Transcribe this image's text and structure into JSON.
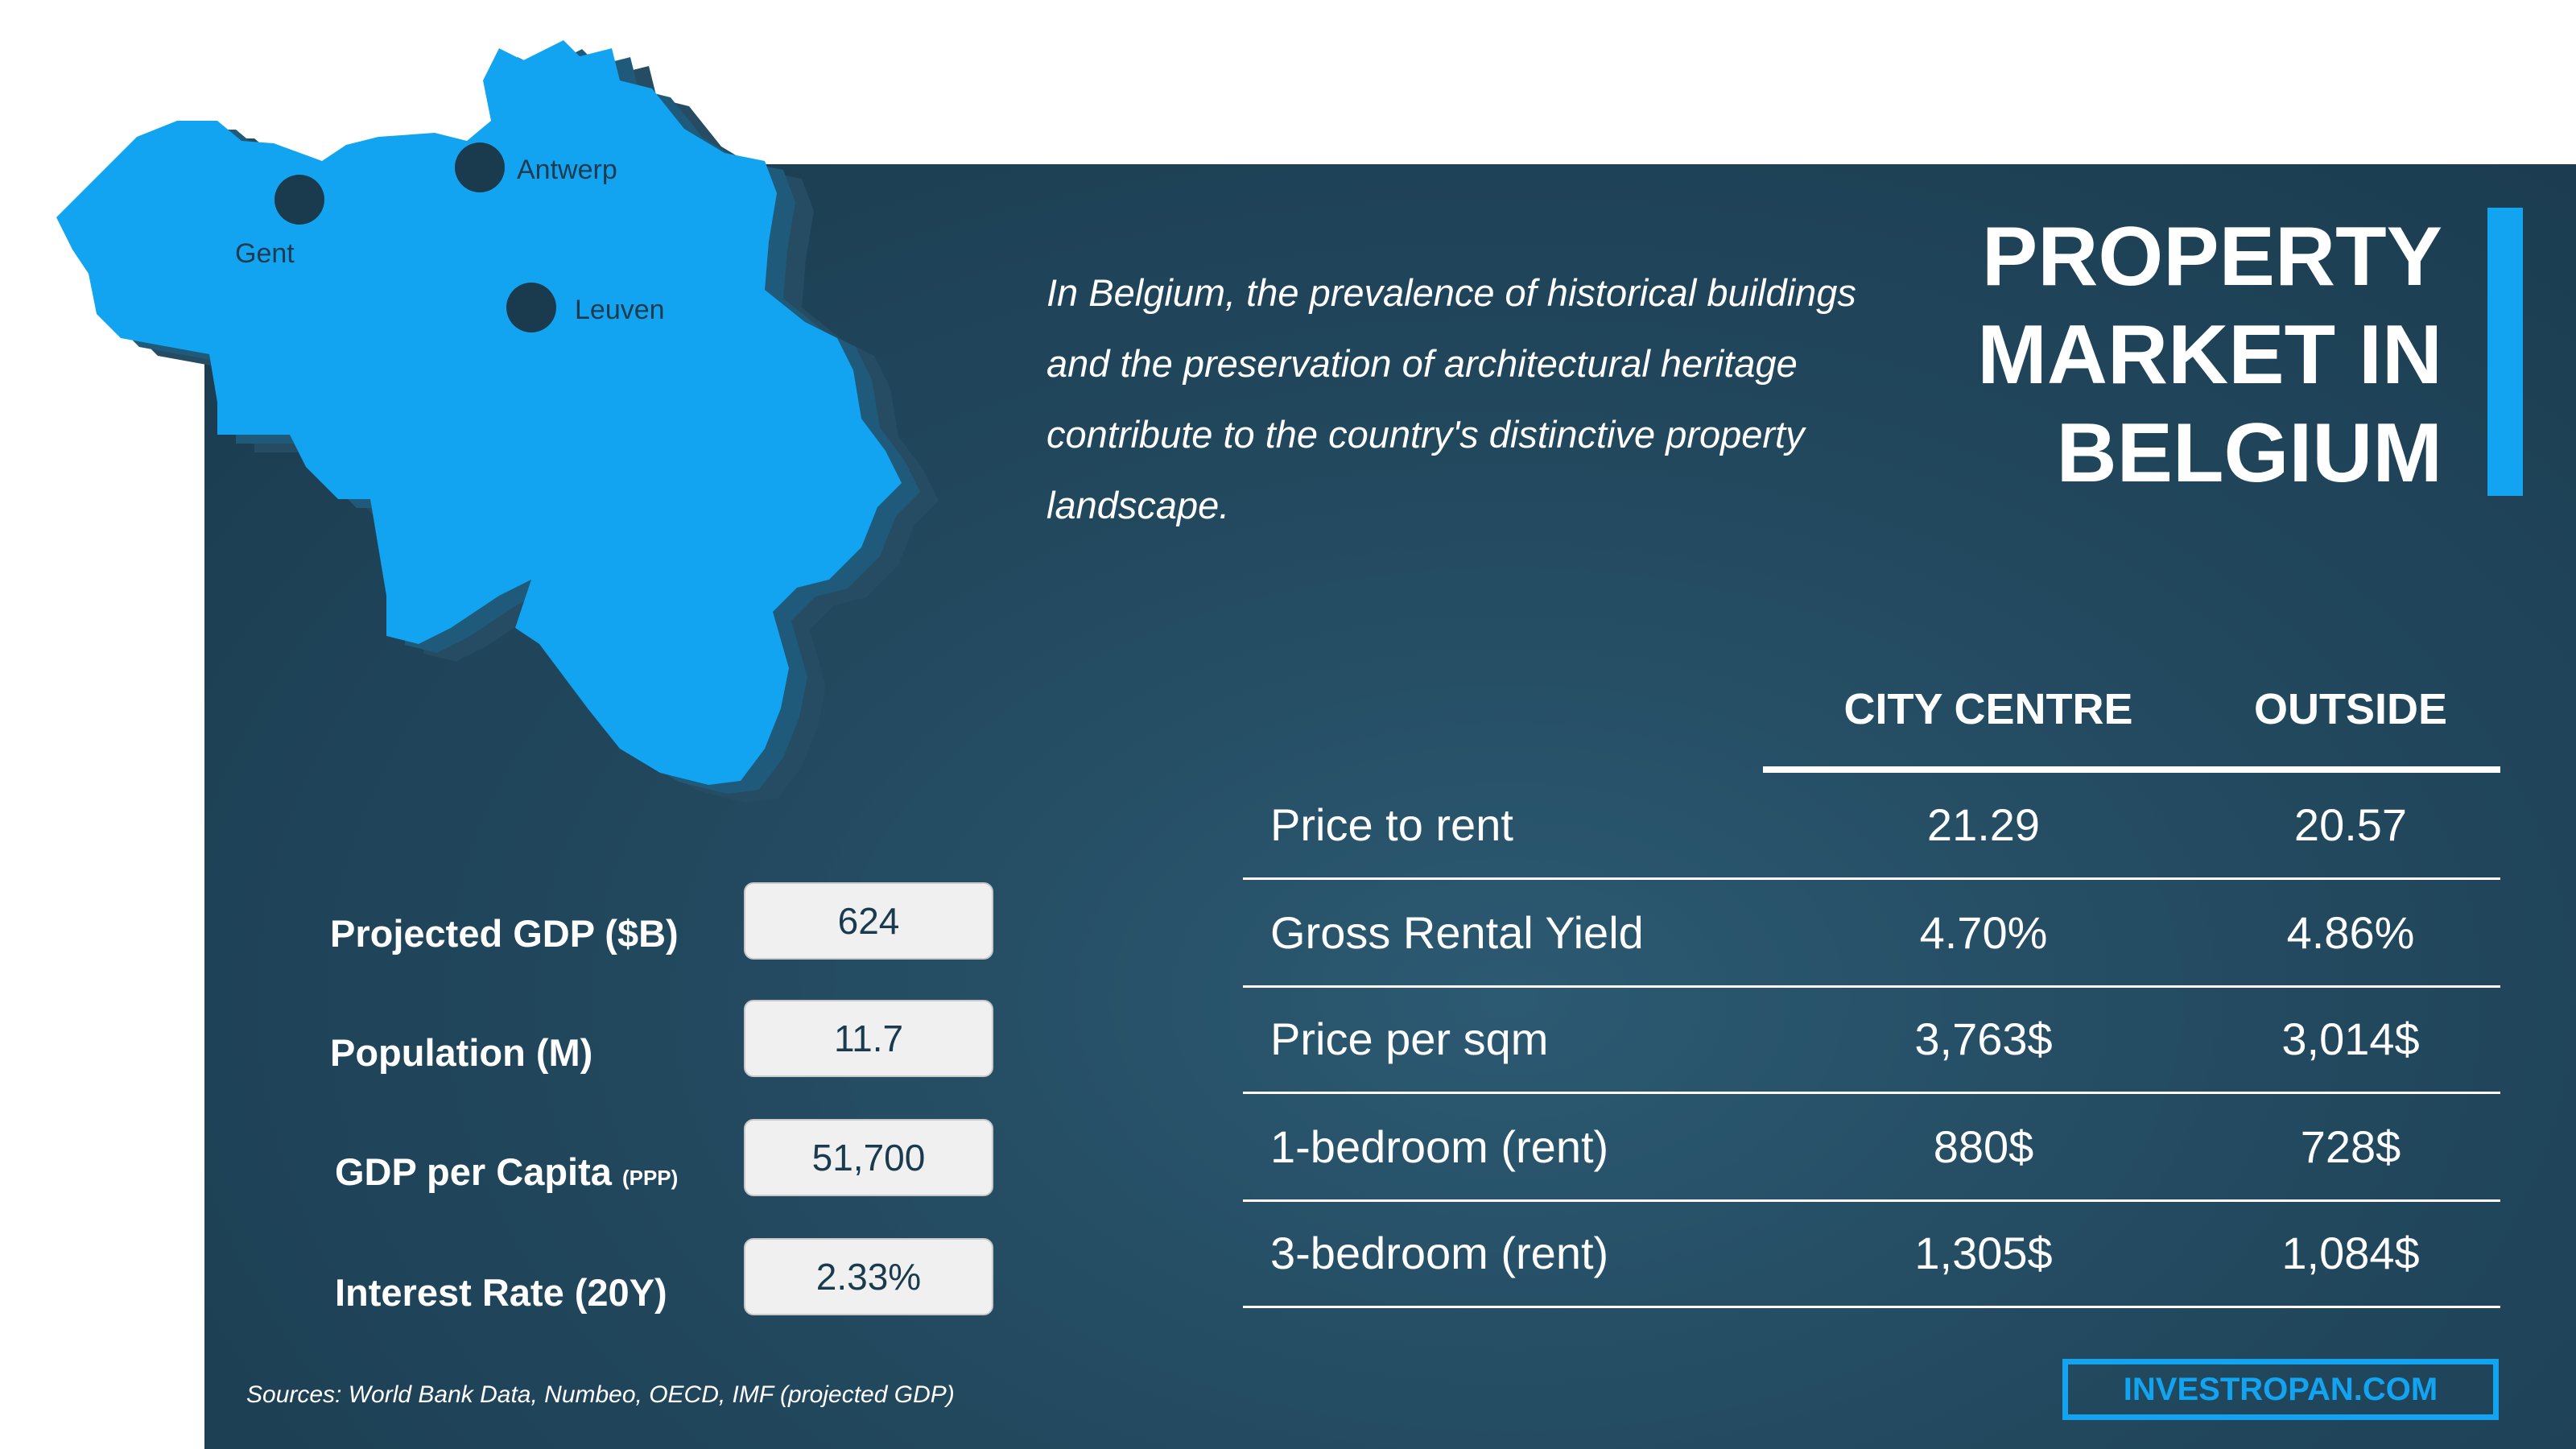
{
  "brand_color": "#12a4f0",
  "map": {
    "cities": [
      "Antwerp",
      "Gent",
      "Leuven"
    ]
  },
  "intro": "In Belgium, the prevalence of historical buildings and the preservation of architectural heritage contribute to the country's distinctive property landscape.",
  "title": {
    "line1": "PROPERTY",
    "line2": "MARKET IN",
    "line3": "BELGIUM"
  },
  "stats": [
    {
      "label": "Projected GDP ($B)",
      "suffix": "",
      "value": "624"
    },
    {
      "label": "Population (M)",
      "suffix": "",
      "value": "11.7"
    },
    {
      "label": "GDP per Capita",
      "suffix": "(PPP)",
      "value": "51,700"
    },
    {
      "label": "Interest Rate (20Y)",
      "suffix": "",
      "value": "2.33%"
    }
  ],
  "table": {
    "headers": [
      "CITY CENTRE",
      "OUTSIDE"
    ],
    "rows": [
      {
        "label": "Price to rent",
        "city": "21.29",
        "outside": "20.57"
      },
      {
        "label": "Gross Rental Yield",
        "city": "4.70%",
        "outside": "4.86%"
      },
      {
        "label": "Price per sqm",
        "city": "3,763$",
        "outside": "3,014$"
      },
      {
        "label": "1-bedroom (rent)",
        "city": "880$",
        "outside": "728$"
      },
      {
        "label": "3-bedroom (rent)",
        "city": "1,305$",
        "outside": "1,084$"
      }
    ]
  },
  "sources": "Sources:  World Bank Data, Numbeo, OECD, IMF (projected GDP)",
  "brand": "INVESTROPAN.COM"
}
